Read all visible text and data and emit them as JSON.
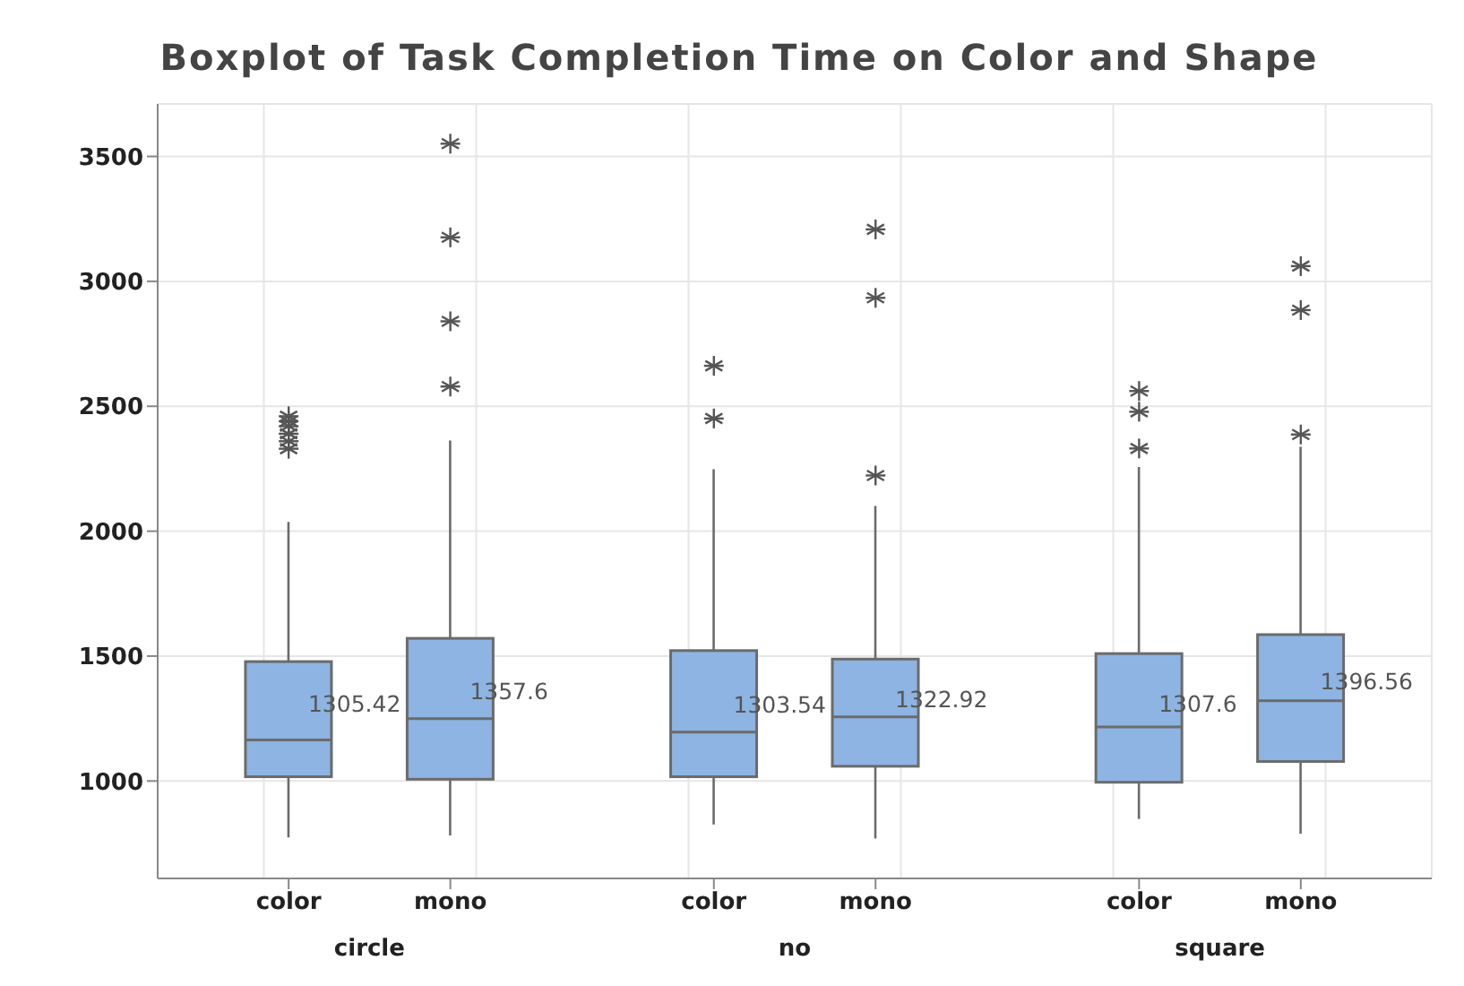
{
  "chart_data": {
    "type": "box",
    "title": "Boxplot of Task Completion Time on Color and Shape",
    "categories": [
      "color",
      "mono",
      "color",
      "mono",
      "color",
      "mono"
    ],
    "boxes": [
      {
        "low": 774,
        "q1": 1017,
        "median": 1164,
        "q3": 1478,
        "high": 2037,
        "outliers": [
          2330,
          2360,
          2390,
          2420,
          2440,
          2460
        ]
      },
      {
        "low": 782,
        "q1": 1007,
        "median": 1250,
        "q3": 1571,
        "high": 2363,
        "outliers": [
          2579,
          2840,
          3176,
          3551
        ]
      },
      {
        "low": 826,
        "q1": 1017,
        "median": 1196,
        "q3": 1522,
        "high": 2248,
        "outliers": [
          2451,
          2662
        ]
      },
      {
        "low": 770,
        "q1": 1059,
        "median": 1257,
        "q3": 1488,
        "high": 2101,
        "outliers": [
          2223,
          2934,
          3208
        ]
      },
      {
        "low": 848,
        "q1": 995,
        "median": 1216,
        "q3": 1510,
        "high": 2257,
        "outliers": [
          2331,
          2478,
          2561
        ]
      },
      {
        "low": 789,
        "q1": 1078,
        "median": 1321,
        "q3": 1586,
        "high": 2338,
        "outliers": [
          2387,
          2885,
          3061
        ]
      }
    ],
    "value_labels": [
      "1305.42",
      "1357.6",
      "1303.54",
      "1322.92",
      "1307.6",
      "1396.56"
    ],
    "color": "#8db4e2",
    "annotations": [
      "circle",
      "no",
      "square"
    ],
    "ylim": [
      610,
      3710
    ],
    "yticks": [
      1000,
      1500,
      2000,
      2500,
      3000,
      3500
    ],
    "grid": true,
    "marker": "star"
  }
}
